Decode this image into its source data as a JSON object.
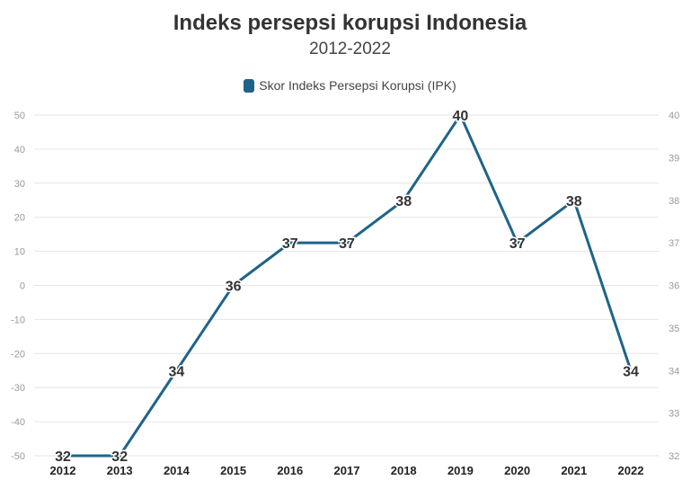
{
  "chart_data": {
    "type": "line",
    "title": "Indeks persepsi korupsi Indonesia",
    "subtitle": "2012-2022",
    "legend": {
      "position": "top-center"
    },
    "categories": [
      "2012",
      "2013",
      "2014",
      "2015",
      "2016",
      "2017",
      "2018",
      "2019",
      "2020",
      "2021",
      "2022"
    ],
    "series": [
      {
        "name": "Skor Indeks Persepsi Korupsi (IPK)",
        "color": "#1f6488",
        "axis": "right",
        "values": [
          32,
          32,
          34,
          36,
          37,
          37,
          38,
          40,
          37,
          38,
          34
        ],
        "data_labels": [
          "32",
          "32",
          "34",
          "36",
          "37",
          "37",
          "38",
          "40",
          "37",
          "38",
          "34"
        ]
      }
    ],
    "left_axis": {
      "ylim": [
        -50,
        50
      ],
      "ticks": [
        "50",
        "40",
        "30",
        "20",
        "10",
        "0",
        "-10",
        "-20",
        "-30",
        "-40",
        "-50"
      ]
    },
    "right_axis": {
      "ylim": [
        32,
        40
      ],
      "ticks": [
        "40",
        "39",
        "38",
        "37",
        "36",
        "35",
        "34",
        "33",
        "32"
      ]
    },
    "grid": true
  }
}
